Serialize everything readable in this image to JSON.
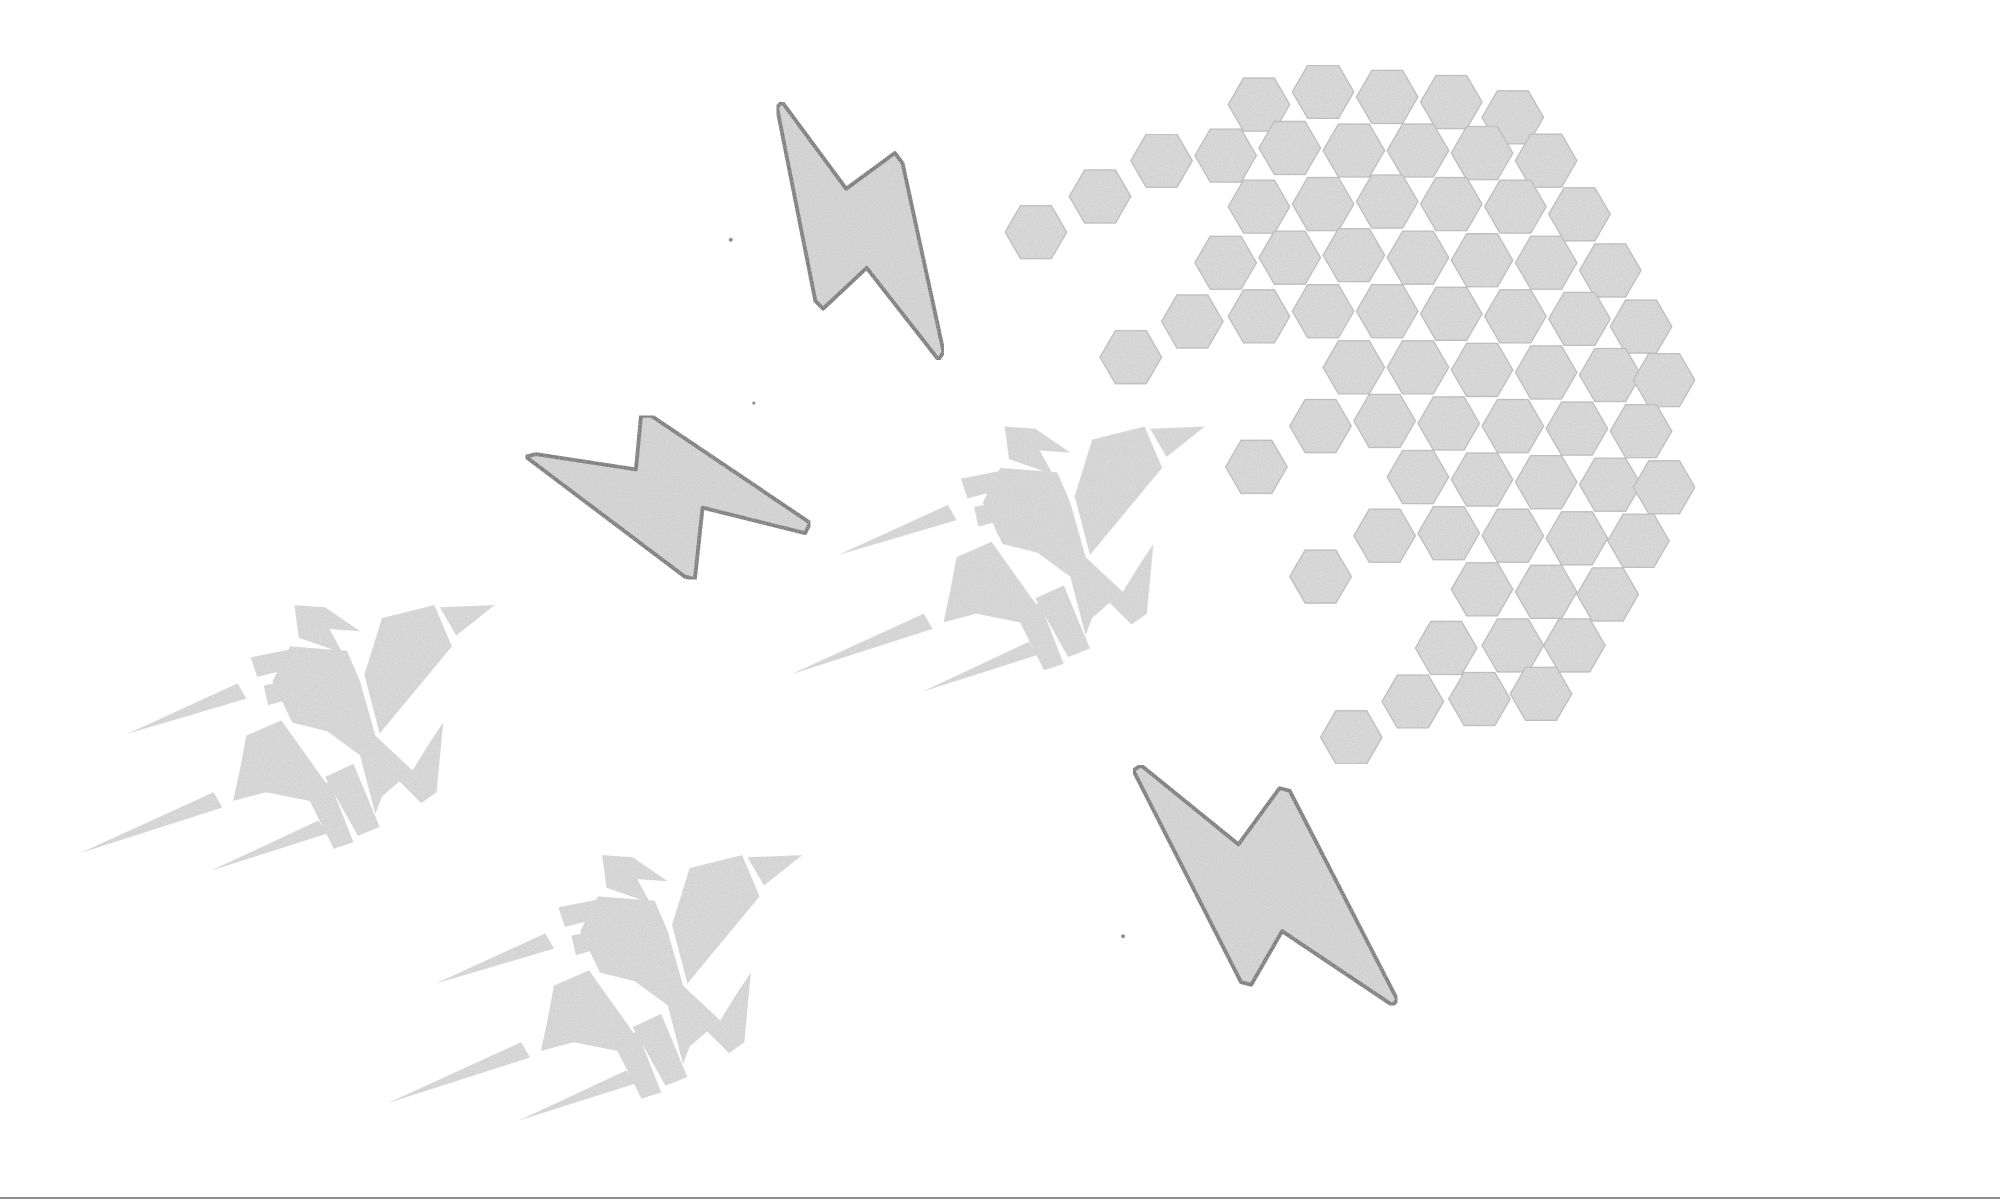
{
  "artwork": {
    "subject": "rockets-planet-lightning",
    "colors": {
      "background": "#ffffff",
      "fill": "#d9d9d9",
      "speckle": "#9a9a9a",
      "outline": "#7a7a7a",
      "rule": "#8c8c8c"
    },
    "elements": {
      "rockets": 3,
      "lightning_bolts": 3,
      "planet": "hexagon-mosaic"
    }
  }
}
